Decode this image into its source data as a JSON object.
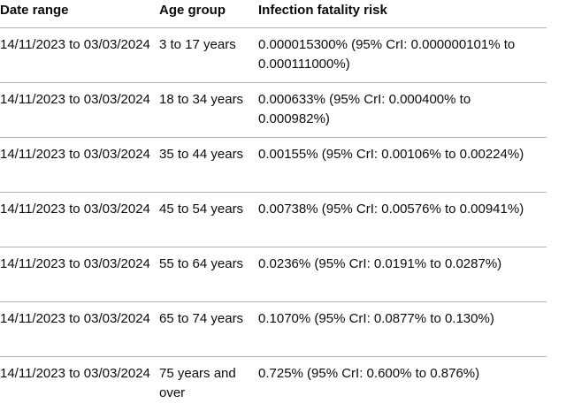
{
  "table": {
    "headers": [
      "Date range",
      "Age group",
      "Infection fatality risk"
    ],
    "rows": [
      {
        "date_range": "14/11/2023 to 03/03/2024",
        "age_group": "3 to 17 years",
        "risk": "0.000015300% (95% CrI: 0.000000101% to 0.000111000%)"
      },
      {
        "date_range": "14/11/2023 to 03/03/2024",
        "age_group": "18 to 34 years",
        "risk": "0.000633% (95% CrI: 0.000400% to 0.000982%)"
      },
      {
        "date_range": "14/11/2023 to 03/03/2024",
        "age_group": "35 to 44 years",
        "risk": "0.00155% (95% CrI: 0.00106% to 0.00224%)"
      },
      {
        "date_range": "14/11/2023 to 03/03/2024",
        "age_group": "45 to 54 years",
        "risk": "0.00738% (95% CrI: 0.00576% to 0.00941%)"
      },
      {
        "date_range": "14/11/2023 to 03/03/2024",
        "age_group": "55 to 64 years",
        "risk": "0.0236% (95% CrI: 0.0191% to 0.0287%)"
      },
      {
        "date_range": "14/11/2023 to 03/03/2024",
        "age_group": "65 to 74 years",
        "risk": "0.1070% (95% CrI: 0.0877% to 0.130%)"
      },
      {
        "date_range": "14/11/2023 to 03/03/2024",
        "age_group": "75 years and over",
        "risk": "0.725% (95% CrI: 0.600% to 0.876%)"
      }
    ]
  }
}
